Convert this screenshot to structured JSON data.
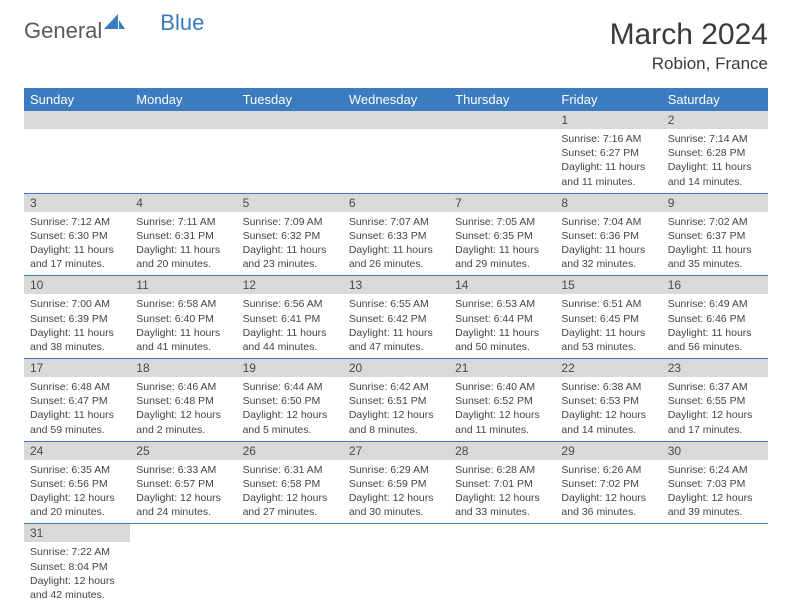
{
  "brand": {
    "part1": "General",
    "part2": "Blue"
  },
  "title": "March 2024",
  "location": "Robion, France",
  "colors": {
    "header_bg": "#3b7bbf",
    "header_text": "#ffffff",
    "daynum_bg": "#d9d9d9",
    "text": "#444444",
    "row_border": "#3b7bbf"
  },
  "day_headers": [
    "Sunday",
    "Monday",
    "Tuesday",
    "Wednesday",
    "Thursday",
    "Friday",
    "Saturday"
  ],
  "weeks": [
    [
      null,
      null,
      null,
      null,
      null,
      {
        "n": "1",
        "sunrise": "7:16 AM",
        "sunset": "6:27 PM",
        "daylight": "11 hours and 11 minutes."
      },
      {
        "n": "2",
        "sunrise": "7:14 AM",
        "sunset": "6:28 PM",
        "daylight": "11 hours and 14 minutes."
      }
    ],
    [
      {
        "n": "3",
        "sunrise": "7:12 AM",
        "sunset": "6:30 PM",
        "daylight": "11 hours and 17 minutes."
      },
      {
        "n": "4",
        "sunrise": "7:11 AM",
        "sunset": "6:31 PM",
        "daylight": "11 hours and 20 minutes."
      },
      {
        "n": "5",
        "sunrise": "7:09 AM",
        "sunset": "6:32 PM",
        "daylight": "11 hours and 23 minutes."
      },
      {
        "n": "6",
        "sunrise": "7:07 AM",
        "sunset": "6:33 PM",
        "daylight": "11 hours and 26 minutes."
      },
      {
        "n": "7",
        "sunrise": "7:05 AM",
        "sunset": "6:35 PM",
        "daylight": "11 hours and 29 minutes."
      },
      {
        "n": "8",
        "sunrise": "7:04 AM",
        "sunset": "6:36 PM",
        "daylight": "11 hours and 32 minutes."
      },
      {
        "n": "9",
        "sunrise": "7:02 AM",
        "sunset": "6:37 PM",
        "daylight": "11 hours and 35 minutes."
      }
    ],
    [
      {
        "n": "10",
        "sunrise": "7:00 AM",
        "sunset": "6:39 PM",
        "daylight": "11 hours and 38 minutes."
      },
      {
        "n": "11",
        "sunrise": "6:58 AM",
        "sunset": "6:40 PM",
        "daylight": "11 hours and 41 minutes."
      },
      {
        "n": "12",
        "sunrise": "6:56 AM",
        "sunset": "6:41 PM",
        "daylight": "11 hours and 44 minutes."
      },
      {
        "n": "13",
        "sunrise": "6:55 AM",
        "sunset": "6:42 PM",
        "daylight": "11 hours and 47 minutes."
      },
      {
        "n": "14",
        "sunrise": "6:53 AM",
        "sunset": "6:44 PM",
        "daylight": "11 hours and 50 minutes."
      },
      {
        "n": "15",
        "sunrise": "6:51 AM",
        "sunset": "6:45 PM",
        "daylight": "11 hours and 53 minutes."
      },
      {
        "n": "16",
        "sunrise": "6:49 AM",
        "sunset": "6:46 PM",
        "daylight": "11 hours and 56 minutes."
      }
    ],
    [
      {
        "n": "17",
        "sunrise": "6:48 AM",
        "sunset": "6:47 PM",
        "daylight": "11 hours and 59 minutes."
      },
      {
        "n": "18",
        "sunrise": "6:46 AM",
        "sunset": "6:48 PM",
        "daylight": "12 hours and 2 minutes."
      },
      {
        "n": "19",
        "sunrise": "6:44 AM",
        "sunset": "6:50 PM",
        "daylight": "12 hours and 5 minutes."
      },
      {
        "n": "20",
        "sunrise": "6:42 AM",
        "sunset": "6:51 PM",
        "daylight": "12 hours and 8 minutes."
      },
      {
        "n": "21",
        "sunrise": "6:40 AM",
        "sunset": "6:52 PM",
        "daylight": "12 hours and 11 minutes."
      },
      {
        "n": "22",
        "sunrise": "6:38 AM",
        "sunset": "6:53 PM",
        "daylight": "12 hours and 14 minutes."
      },
      {
        "n": "23",
        "sunrise": "6:37 AM",
        "sunset": "6:55 PM",
        "daylight": "12 hours and 17 minutes."
      }
    ],
    [
      {
        "n": "24",
        "sunrise": "6:35 AM",
        "sunset": "6:56 PM",
        "daylight": "12 hours and 20 minutes."
      },
      {
        "n": "25",
        "sunrise": "6:33 AM",
        "sunset": "6:57 PM",
        "daylight": "12 hours and 24 minutes."
      },
      {
        "n": "26",
        "sunrise": "6:31 AM",
        "sunset": "6:58 PM",
        "daylight": "12 hours and 27 minutes."
      },
      {
        "n": "27",
        "sunrise": "6:29 AM",
        "sunset": "6:59 PM",
        "daylight": "12 hours and 30 minutes."
      },
      {
        "n": "28",
        "sunrise": "6:28 AM",
        "sunset": "7:01 PM",
        "daylight": "12 hours and 33 minutes."
      },
      {
        "n": "29",
        "sunrise": "6:26 AM",
        "sunset": "7:02 PM",
        "daylight": "12 hours and 36 minutes."
      },
      {
        "n": "30",
        "sunrise": "6:24 AM",
        "sunset": "7:03 PM",
        "daylight": "12 hours and 39 minutes."
      }
    ],
    [
      {
        "n": "31",
        "sunrise": "7:22 AM",
        "sunset": "8:04 PM",
        "daylight": "12 hours and 42 minutes."
      },
      null,
      null,
      null,
      null,
      null,
      null
    ]
  ],
  "labels": {
    "sunrise": "Sunrise: ",
    "sunset": "Sunset: ",
    "daylight": "Daylight: "
  }
}
